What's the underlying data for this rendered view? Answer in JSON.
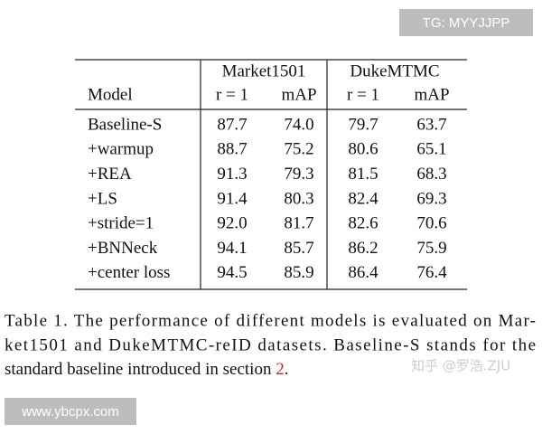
{
  "table": {
    "group_headers": [
      "Market1501",
      "DukeMTMC"
    ],
    "column_headers": [
      "Model",
      "r = 1",
      "mAP",
      "r = 1",
      "mAP"
    ],
    "rows": [
      [
        "Baseline-S",
        "87.7",
        "74.0",
        "79.7",
        "63.7"
      ],
      [
        "+warmup",
        "88.7",
        "75.2",
        "80.6",
        "65.1"
      ],
      [
        "+REA",
        "91.3",
        "79.3",
        "81.5",
        "68.3"
      ],
      [
        "+LS",
        "91.4",
        "80.3",
        "82.4",
        "69.3"
      ],
      [
        "+stride=1",
        "92.0",
        "81.7",
        "82.6",
        "70.6"
      ],
      [
        "+BNNeck",
        "94.1",
        "85.7",
        "86.2",
        "75.9"
      ],
      [
        "+center loss",
        "94.5",
        "85.9",
        "86.4",
        "76.4"
      ]
    ]
  },
  "caption": {
    "lines": [
      "Table 1. The performance of different models is evaluated on Mar-",
      "ket1501 and DukeMTMC-reID datasets. Baseline-S stands for the",
      "standard baseline introduced in section "
    ],
    "ref": "2",
    "end": "."
  },
  "watermarks": {
    "top_right": "TG: MYYJJPP",
    "bottom_left": "www.ybcpx.com",
    "zhihu": "知乎 @罗浩.ZJU"
  }
}
